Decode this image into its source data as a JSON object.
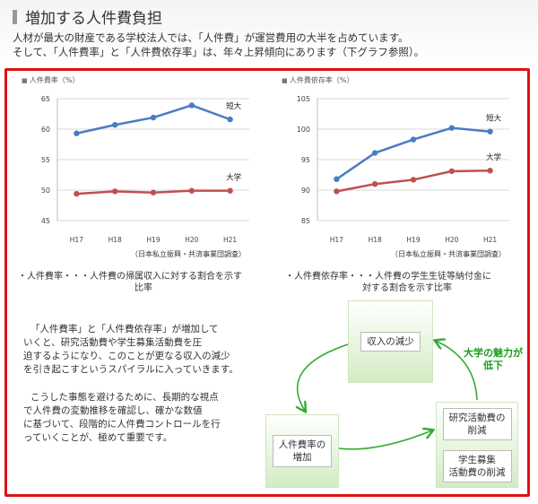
{
  "header": {
    "title": "増加する人件費負担",
    "intro_line1": "人材が最大の財産である学校法人では、「人件費」が運営費用の大半を占めています。",
    "intro_line2": "そして、「人件費率」と「人件費依存率」は、年々上昇傾向にあります（下グラフ参照）。"
  },
  "chart_data": [
    {
      "type": "line",
      "title": "人件費率（%）",
      "categories": [
        "H17",
        "H18",
        "H19",
        "H20",
        "H21"
      ],
      "ylim": [
        45,
        65
      ],
      "yticks": [
        45,
        50,
        55,
        60,
        65
      ],
      "series": [
        {
          "name": "短大",
          "values": [
            59.3,
            60.7,
            61.9,
            63.9,
            61.6
          ],
          "color": "#4a7cc4"
        },
        {
          "name": "大学",
          "values": [
            49.4,
            49.8,
            49.6,
            49.9,
            49.9
          ],
          "color": "#c0504d"
        }
      ],
      "source": "（日本私立振興・共済事業団調査）",
      "grid": true
    },
    {
      "type": "line",
      "title": "人件費依存率（%）",
      "categories": [
        "H17",
        "H18",
        "H19",
        "H20",
        "H21"
      ],
      "ylim": [
        85,
        105
      ],
      "yticks": [
        85,
        90,
        95,
        100,
        105
      ],
      "series": [
        {
          "name": "短大",
          "values": [
            91.8,
            96.1,
            98.3,
            100.2,
            99.6
          ],
          "color": "#4a7cc4"
        },
        {
          "name": "大学",
          "values": [
            89.8,
            91.0,
            91.7,
            93.1,
            93.2
          ],
          "color": "#c0504d"
        }
      ],
      "source": "（日本私立振興・共済事業団調査）",
      "grid": true
    }
  ],
  "definitions": {
    "rate_l1": "・人件費率・・・人件費の帰属収入に対する割合を示す",
    "rate_l2": "比率",
    "dep_l1": "・人件費依存率・・・人件費の学生生徒等納付金に",
    "dep_l2": "対する割合を示す比率"
  },
  "body_text": {
    "p1": [
      "「人件費率」と「人件費依存率」が増加して",
      "いくと、研究活動費や学生募集活動費を圧",
      "迫するようになり、このことが更なる収入の減少",
      "を引き起こすというスパイラルに入っていきます。"
    ],
    "p2": [
      "こうした事態を避けるために、長期的な視点",
      "で人件費の変動推移を確認し、確かな数値",
      "に基づいて、段階的に人件費コントロールを行",
      "っていくことが、極めて重要です。"
    ]
  },
  "cycle": {
    "income_decrease": "収入の減少",
    "personnel_increase_l1": "人件費率の",
    "personnel_increase_l2": "増加",
    "research_l1": "研究活動費の",
    "research_l2": "削減",
    "recruit_l1": "学生募集",
    "recruit_l2": "活動費の削減",
    "charm_l1": "大学の魅力が",
    "charm_l2": "低下"
  },
  "colors": {
    "frame": "#e01010",
    "accent_green": "#1a9c1a",
    "arrow_green": "#33aa33"
  }
}
